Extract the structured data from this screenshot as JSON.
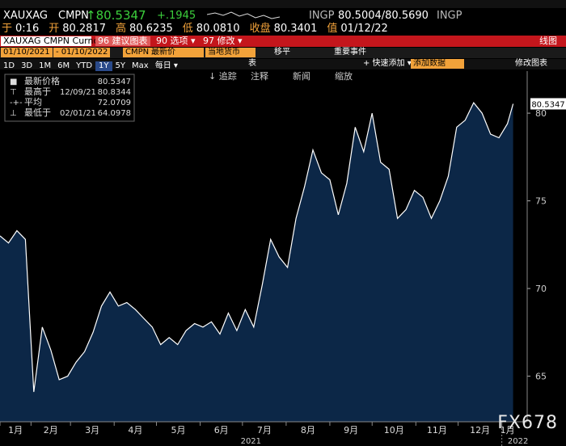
{
  "header": {
    "ticker": "XAUXAG",
    "source": "CMPN",
    "last": "↑80.5347",
    "change": "+.1945",
    "bid_source": "INGP",
    "bid_ask": "80.5004/80.5690",
    "ask_source": "INGP",
    "row2": [
      {
        "label": "于",
        "value": "0:16"
      },
      {
        "label": "开",
        "value": "80.2817"
      },
      {
        "label": "高",
        "value": "80.6235"
      },
      {
        "label": "低",
        "value": "80.0810"
      },
      {
        "label": "收盘",
        "value": "80.3401"
      },
      {
        "label": "值",
        "value": "01/12/22"
      }
    ]
  },
  "toolbar": {
    "security": "XAUXAG CMPN Curnc",
    "menu": [
      "96 建议图表",
      "90 选项 ▾",
      "97 修改 ▾"
    ],
    "chart_kind": "线图",
    "start": "01/10/2021",
    "end": "- 01/10/2022",
    "source": "CMPN",
    "field": "最新价",
    "currency": "当地货币",
    "smooth": "移平",
    "events": "重要事件",
    "periods": [
      "1D",
      "3D",
      "1M",
      "6M",
      "YTD",
      "1Y",
      "5Y",
      "Max",
      "每日 ▾"
    ],
    "table": "表",
    "quick_add": "+ 快速添加 ▾",
    "add_data": "添加数据",
    "edit_chart": "修改图表",
    "chart_tools": [
      "↓ 追踪",
      "注释",
      "新闻",
      "缩放"
    ]
  },
  "chart_data": {
    "type": "area",
    "color": "#ffffff",
    "fill": "#0c2747",
    "x": [
      0,
      6,
      12,
      18,
      24,
      30,
      36,
      42,
      48,
      54,
      60,
      66,
      72,
      78,
      84,
      90,
      96,
      102,
      108,
      114,
      120,
      126,
      132,
      138,
      144,
      150,
      156,
      162,
      168,
      174,
      180,
      186,
      192,
      198,
      204,
      210,
      216,
      222,
      228,
      234,
      240,
      246,
      252,
      258,
      264,
      270,
      276,
      282,
      288,
      294,
      300,
      306,
      312,
      318,
      324,
      330,
      336,
      342,
      348,
      354,
      360,
      364
    ],
    "values": [
      73.0,
      72.6,
      73.3,
      72.8,
      64.1,
      67.8,
      66.5,
      64.8,
      65.0,
      65.8,
      66.4,
      67.5,
      69.0,
      69.8,
      69.0,
      69.2,
      68.8,
      68.3,
      67.8,
      66.8,
      67.2,
      66.8,
      67.6,
      68.0,
      67.8,
      68.1,
      67.4,
      68.6,
      67.6,
      68.8,
      67.8,
      70.2,
      72.8,
      71.8,
      71.2,
      74.0,
      75.8,
      77.9,
      76.6,
      76.2,
      74.2,
      76.0,
      79.2,
      77.8,
      80.0,
      77.2,
      76.8,
      74.0,
      74.5,
      75.6,
      75.2,
      74.0,
      75.0,
      76.4,
      79.2,
      79.6,
      80.6,
      80.0,
      78.8,
      78.6,
      79.4,
      80.5347
    ],
    "xlim": [
      0,
      374
    ],
    "ylim": [
      62.4,
      82.4
    ],
    "yticks": [
      65,
      70,
      75,
      80
    ],
    "xticks": [
      {
        "value": 0,
        "label": "1月"
      },
      {
        "value": 22,
        "label": "2月"
      },
      {
        "value": 50,
        "label": "3月"
      },
      {
        "value": 81,
        "label": "4月"
      },
      {
        "value": 111,
        "label": "5月"
      },
      {
        "value": 142,
        "label": "6月"
      },
      {
        "value": 172,
        "label": "7月"
      },
      {
        "value": 203,
        "label": "8月"
      },
      {
        "value": 234,
        "label": "9月"
      },
      {
        "value": 264,
        "label": "10月"
      },
      {
        "value": 295,
        "label": "11月"
      },
      {
        "value": 325,
        "label": "12月"
      },
      {
        "value": 356,
        "label": "1月"
      }
    ],
    "x2ticks": [
      {
        "value": 0,
        "label": "2021"
      },
      {
        "value": 356,
        "label": "2022"
      }
    ],
    "stats": [
      {
        "name": "最新价格",
        "value": "80.5347"
      },
      {
        "name": "最高于",
        "date": "12/09/21",
        "value": "80.8344"
      },
      {
        "name": "平均",
        "value": "72.0709"
      },
      {
        "name": "最低于",
        "date": "02/01/21",
        "value": "64.0978"
      }
    ]
  },
  "watermark": "FX678"
}
